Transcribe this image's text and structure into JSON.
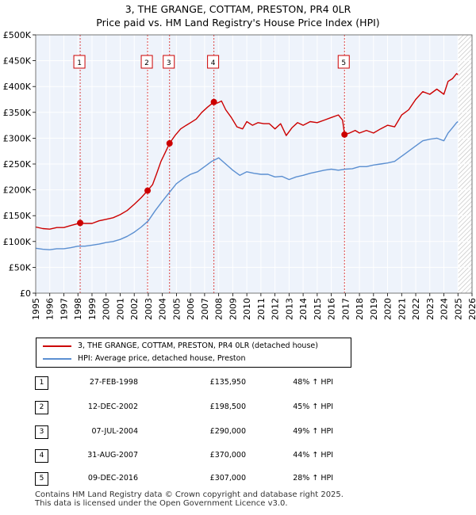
{
  "chart_data": {
    "type": "line",
    "title": "3, THE GRANGE, COTTAM, PRESTON, PR4 0LR",
    "subtitle": "Price paid vs. HM Land Registry's House Price Index (HPI)",
    "xlim": [
      1995,
      2026
    ],
    "ylim": [
      0,
      500000
    ],
    "x_ticks": [
      "1995",
      "1996",
      "1997",
      "1998",
      "1999",
      "2000",
      "2001",
      "2002",
      "2003",
      "2004",
      "2005",
      "2006",
      "2007",
      "2008",
      "2009",
      "2010",
      "2011",
      "2012",
      "2013",
      "2014",
      "2015",
      "2016",
      "2017",
      "2018",
      "2019",
      "2020",
      "2021",
      "2022",
      "2023",
      "2024",
      "2025",
      "2026"
    ],
    "y_ticks": [
      {
        "value": 0,
        "label": "£0"
      },
      {
        "value": 50000,
        "label": "£50K"
      },
      {
        "value": 100000,
        "label": "£100K"
      },
      {
        "value": 150000,
        "label": "£150K"
      },
      {
        "value": 200000,
        "label": "£200K"
      },
      {
        "value": 250000,
        "label": "£250K"
      },
      {
        "value": 300000,
        "label": "£300K"
      },
      {
        "value": 350000,
        "label": "£350K"
      },
      {
        "value": 400000,
        "label": "£400K"
      },
      {
        "value": 450000,
        "label": "£450K"
      },
      {
        "value": 500000,
        "label": "£500K"
      }
    ],
    "grid": true,
    "forecast_from": 2025.0,
    "series": [
      {
        "name": "3, THE GRANGE, COTTAM, PRESTON, PR4 0LR (detached house)",
        "color": "#cc0000",
        "points": [
          [
            1995.0,
            128000
          ],
          [
            1995.5,
            125000
          ],
          [
            1996.0,
            124000
          ],
          [
            1996.5,
            127000
          ],
          [
            1997.0,
            127000
          ],
          [
            1997.5,
            131000
          ],
          [
            1998.16,
            135950
          ],
          [
            1998.5,
            135000
          ],
          [
            1999.0,
            135000
          ],
          [
            1999.5,
            140000
          ],
          [
            2000.0,
            143000
          ],
          [
            2000.5,
            146000
          ],
          [
            2001.0,
            152000
          ],
          [
            2001.5,
            160000
          ],
          [
            2002.0,
            172000
          ],
          [
            2002.5,
            185000
          ],
          [
            2002.95,
            198500
          ],
          [
            2003.3,
            210000
          ],
          [
            2003.6,
            232000
          ],
          [
            2003.9,
            255000
          ],
          [
            2004.2,
            272000
          ],
          [
            2004.51,
            290000
          ],
          [
            2004.9,
            305000
          ],
          [
            2005.3,
            318000
          ],
          [
            2005.7,
            325000
          ],
          [
            2006.0,
            330000
          ],
          [
            2006.4,
            337000
          ],
          [
            2006.8,
            350000
          ],
          [
            2007.2,
            360000
          ],
          [
            2007.66,
            370000
          ],
          [
            2007.9,
            368000
          ],
          [
            2008.2,
            372000
          ],
          [
            2008.5,
            355000
          ],
          [
            2008.9,
            340000
          ],
          [
            2009.3,
            322000
          ],
          [
            2009.7,
            318000
          ],
          [
            2010.0,
            332000
          ],
          [
            2010.4,
            325000
          ],
          [
            2010.8,
            330000
          ],
          [
            2011.2,
            328000
          ],
          [
            2011.6,
            328000
          ],
          [
            2012.0,
            318000
          ],
          [
            2012.4,
            328000
          ],
          [
            2012.8,
            305000
          ],
          [
            2013.2,
            320000
          ],
          [
            2013.6,
            330000
          ],
          [
            2014.0,
            325000
          ],
          [
            2014.5,
            332000
          ],
          [
            2015.0,
            330000
          ],
          [
            2015.5,
            335000
          ],
          [
            2016.0,
            340000
          ],
          [
            2016.5,
            345000
          ],
          [
            2016.8,
            335000
          ],
          [
            2016.94,
            307000
          ],
          [
            2017.3,
            310000
          ],
          [
            2017.7,
            315000
          ],
          [
            2018.0,
            310000
          ],
          [
            2018.5,
            315000
          ],
          [
            2019.0,
            310000
          ],
          [
            2019.5,
            318000
          ],
          [
            2020.0,
            325000
          ],
          [
            2020.5,
            322000
          ],
          [
            2021.0,
            345000
          ],
          [
            2021.5,
            355000
          ],
          [
            2022.0,
            375000
          ],
          [
            2022.5,
            390000
          ],
          [
            2023.0,
            385000
          ],
          [
            2023.5,
            395000
          ],
          [
            2024.0,
            385000
          ],
          [
            2024.3,
            410000
          ],
          [
            2024.6,
            415000
          ],
          [
            2024.9,
            425000
          ],
          [
            2025.0,
            423000
          ]
        ]
      },
      {
        "name": "HPI: Average price, detached house, Preston",
        "color": "#5b8fd1",
        "points": [
          [
            1995.0,
            87000
          ],
          [
            1995.5,
            85000
          ],
          [
            1996.0,
            84000
          ],
          [
            1996.5,
            86000
          ],
          [
            1997.0,
            86000
          ],
          [
            1997.5,
            88000
          ],
          [
            1998.0,
            91000
          ],
          [
            1998.5,
            91000
          ],
          [
            1999.0,
            93000
          ],
          [
            1999.5,
            95000
          ],
          [
            2000.0,
            98000
          ],
          [
            2000.5,
            100000
          ],
          [
            2001.0,
            104000
          ],
          [
            2001.5,
            110000
          ],
          [
            2002.0,
            118000
          ],
          [
            2002.5,
            128000
          ],
          [
            2003.0,
            140000
          ],
          [
            2003.5,
            160000
          ],
          [
            2004.0,
            178000
          ],
          [
            2004.5,
            195000
          ],
          [
            2005.0,
            212000
          ],
          [
            2005.5,
            222000
          ],
          [
            2006.0,
            230000
          ],
          [
            2006.5,
            235000
          ],
          [
            2007.0,
            245000
          ],
          [
            2007.5,
            255000
          ],
          [
            2008.0,
            262000
          ],
          [
            2008.5,
            250000
          ],
          [
            2009.0,
            238000
          ],
          [
            2009.5,
            228000
          ],
          [
            2010.0,
            235000
          ],
          [
            2010.5,
            232000
          ],
          [
            2011.0,
            230000
          ],
          [
            2011.5,
            230000
          ],
          [
            2012.0,
            225000
          ],
          [
            2012.5,
            226000
          ],
          [
            2013.0,
            220000
          ],
          [
            2013.5,
            225000
          ],
          [
            2014.0,
            228000
          ],
          [
            2014.5,
            232000
          ],
          [
            2015.0,
            235000
          ],
          [
            2015.5,
            238000
          ],
          [
            2016.0,
            240000
          ],
          [
            2016.5,
            238000
          ],
          [
            2017.0,
            240000
          ],
          [
            2017.5,
            241000
          ],
          [
            2018.0,
            245000
          ],
          [
            2018.5,
            245000
          ],
          [
            2019.0,
            248000
          ],
          [
            2019.5,
            250000
          ],
          [
            2020.0,
            252000
          ],
          [
            2020.5,
            255000
          ],
          [
            2021.0,
            265000
          ],
          [
            2021.5,
            275000
          ],
          [
            2022.0,
            285000
          ],
          [
            2022.5,
            295000
          ],
          [
            2023.0,
            298000
          ],
          [
            2023.5,
            300000
          ],
          [
            2024.0,
            295000
          ],
          [
            2024.3,
            310000
          ],
          [
            2024.6,
            320000
          ],
          [
            2024.9,
            330000
          ],
          [
            2025.0,
            332000
          ]
        ]
      }
    ],
    "markers": [
      {
        "label": "1",
        "x": 1998.16,
        "y": 135950
      },
      {
        "label": "2",
        "x": 2002.95,
        "y": 198500
      },
      {
        "label": "3",
        "x": 2004.51,
        "y": 290000
      },
      {
        "label": "4",
        "x": 2007.66,
        "y": 370000
      },
      {
        "label": "5",
        "x": 2016.94,
        "y": 307000
      }
    ]
  },
  "legend": [
    {
      "label": "3, THE GRANGE, COTTAM, PRESTON, PR4 0LR (detached house)",
      "color": "#cc0000"
    },
    {
      "label": "HPI: Average price, detached house, Preston",
      "color": "#5b8fd1"
    }
  ],
  "transactions": [
    {
      "num": "1",
      "date": "27-FEB-1998",
      "price": "£135,950",
      "hpi": "48% ↑ HPI"
    },
    {
      "num": "2",
      "date": "12-DEC-2002",
      "price": "£198,500",
      "hpi": "45% ↑ HPI"
    },
    {
      "num": "3",
      "date": "07-JUL-2004",
      "price": "£290,000",
      "hpi": "49% ↑ HPI"
    },
    {
      "num": "4",
      "date": "31-AUG-2007",
      "price": "£370,000",
      "hpi": "44% ↑ HPI"
    },
    {
      "num": "5",
      "date": "09-DEC-2016",
      "price": "£307,000",
      "hpi": "28% ↑ HPI"
    }
  ],
  "footer": {
    "line1": "Contains HM Land Registry data © Crown copyright and database right 2025.",
    "line2": "This data is licensed under the Open Government Licence v3.0."
  }
}
